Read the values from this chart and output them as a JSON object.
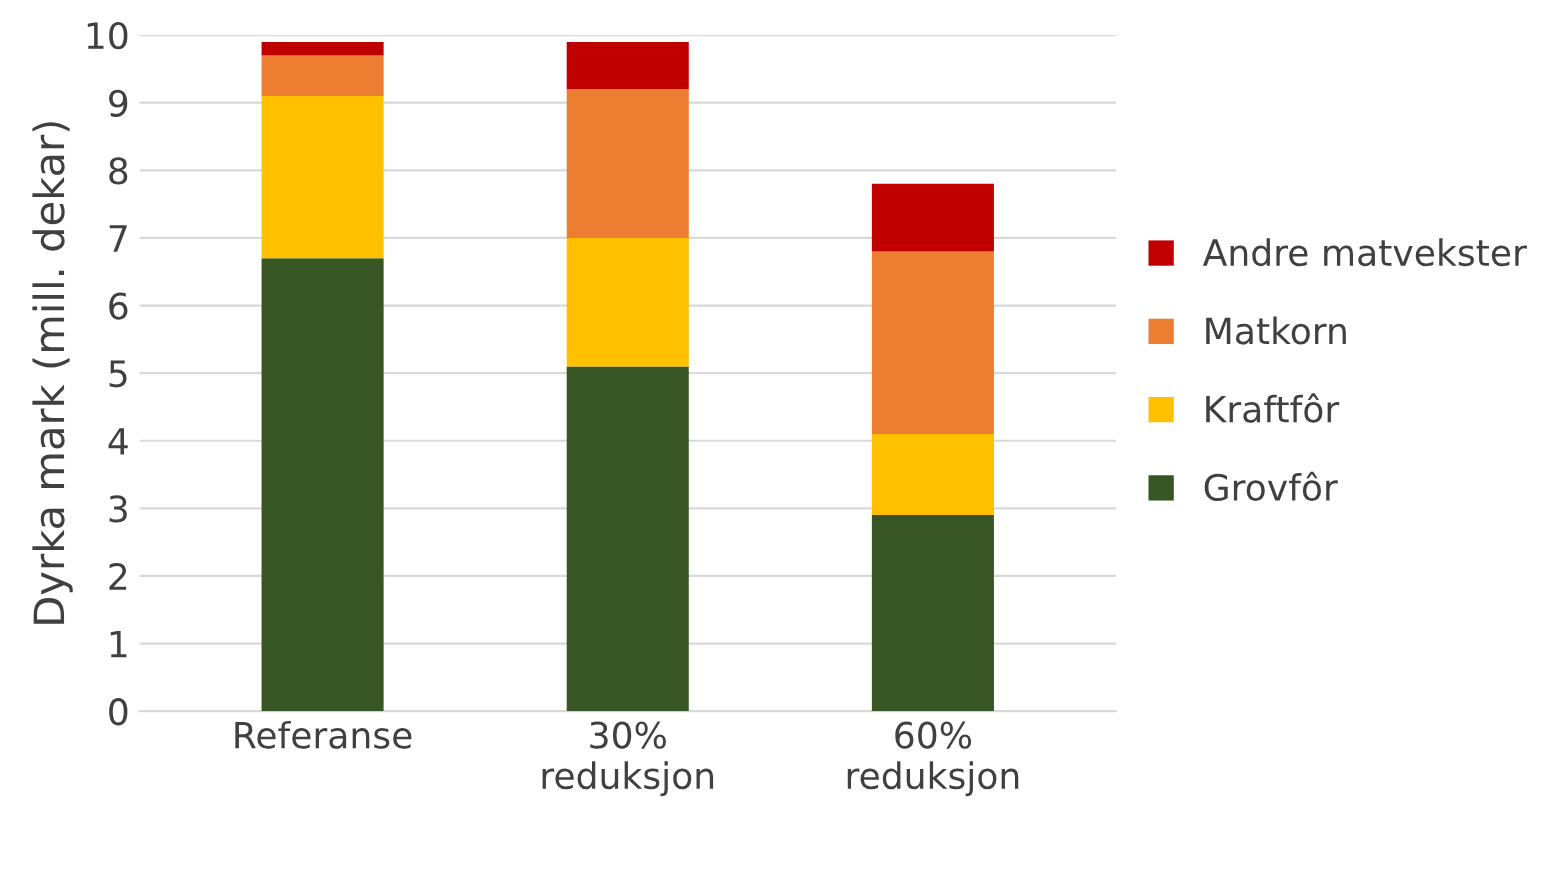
{
  "chart_data": {
    "type": "bar",
    "stacked": true,
    "ylabel": "Dyrka mark (mill. dekar)",
    "categories": [
      "Referanse",
      "30%\nreduksjon",
      "60%\nreduksjon"
    ],
    "series": [
      {
        "name": "Grovfôr",
        "color": "#375623",
        "values": [
          6.7,
          5.1,
          2.9
        ]
      },
      {
        "name": "Kraftfôr",
        "color": "#ffc000",
        "values": [
          2.4,
          1.9,
          1.2
        ]
      },
      {
        "name": "Matkorn",
        "color": "#ed7d31",
        "values": [
          0.6,
          2.2,
          2.7
        ]
      },
      {
        "name": "Andre matvekster",
        "color": "#c00000",
        "values": [
          0.2,
          0.7,
          1.0
        ]
      }
    ],
    "ylim": [
      0,
      10
    ],
    "yticks": [
      0,
      1,
      2,
      3,
      4,
      5,
      6,
      7,
      8,
      9,
      10
    ],
    "grid": "y",
    "legend": "right"
  }
}
